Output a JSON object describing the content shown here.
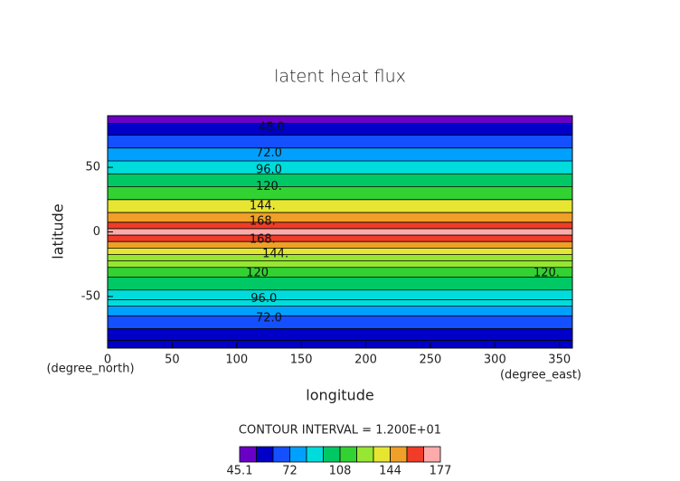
{
  "chart_data": {
    "type": "contour",
    "title": "latent heat flux",
    "x_label": "longitude",
    "y_label": "latitude",
    "x_unit": "(degree_east)",
    "y_unit": "(degree_north)",
    "xlim": [
      0,
      360
    ],
    "ylim": [
      -90,
      90
    ],
    "xticks": [
      0,
      50,
      100,
      150,
      200,
      250,
      300,
      350
    ],
    "yticks": [
      -50,
      0,
      50
    ],
    "y": [
      88,
      80,
      70,
      60,
      50,
      40,
      30,
      20,
      10,
      5,
      0,
      -5,
      -10,
      -15,
      -20,
      -25,
      -30,
      -40,
      -50,
      -55,
      -60,
      -70,
      -80,
      -88
    ],
    "values": [
      46,
      55,
      68,
      78,
      90,
      104,
      118,
      140,
      150,
      162,
      172,
      165,
      152,
      140,
      128,
      122,
      115,
      105,
      92,
      84,
      75,
      62,
      52,
      50
    ],
    "levels": [
      45.1,
      48,
      60,
      72,
      84,
      96,
      108,
      120,
      132,
      144,
      156,
      168,
      177
    ],
    "colors": [
      "#6a00c8",
      "#0000c8",
      "#1450ff",
      "#00a0ff",
      "#00dcdc",
      "#00c864",
      "#32d232",
      "#96e632",
      "#e6e632",
      "#f0a028",
      "#f03c28",
      "#ffaaaa"
    ],
    "colorbar_ticks": [
      45.1,
      72,
      108,
      144,
      177
    ],
    "contour_interval_label": "CONTOUR INTERVAL = 1.200E+01",
    "contour_labels": [
      {
        "text": "48.0",
        "x": 127,
        "y": 81
      },
      {
        "text": "72.0",
        "x": 125,
        "y": 61
      },
      {
        "text": "96.0",
        "x": 125,
        "y": 48
      },
      {
        "text": "120.",
        "x": 125,
        "y": 35
      },
      {
        "text": "144.",
        "x": 120,
        "y": 20
      },
      {
        "text": "168.",
        "x": 120,
        "y": 8
      },
      {
        "text": "168.",
        "x": 120,
        "y": -6
      },
      {
        "text": "144.",
        "x": 130,
        "y": -17
      },
      {
        "text": "120",
        "x": 116,
        "y": -32
      },
      {
        "text": "120.",
        "x": 340,
        "y": -32
      },
      {
        "text": "96.0",
        "x": 121,
        "y": -52
      },
      {
        "text": "72.0",
        "x": 125,
        "y": -67
      }
    ]
  }
}
